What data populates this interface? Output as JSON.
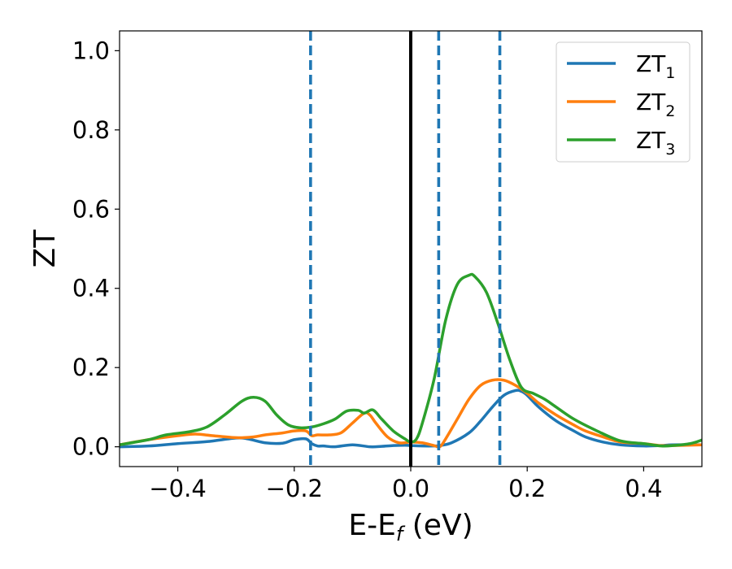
{
  "chart_data": {
    "type": "line",
    "title": "",
    "xlabel": "E-E",
    "xlabel_sub": "f",
    "xlabel_unit": " (eV)",
    "ylabel": "ZT",
    "xlim": [
      -0.5,
      0.5
    ],
    "ylim": [
      -0.05,
      1.05
    ],
    "xticks": [
      -0.4,
      -0.2,
      0.0,
      0.2,
      0.4
    ],
    "xtick_labels": [
      "−0.4",
      "−0.2",
      "0.0",
      "0.2",
      "0.4"
    ],
    "yticks": [
      0.0,
      0.2,
      0.4,
      0.6,
      0.8,
      1.0
    ],
    "ytick_labels": [
      "0.0",
      "0.2",
      "0.4",
      "0.6",
      "0.8",
      "1.0"
    ],
    "grid": false,
    "legend_position": "top-right",
    "vlines": [
      {
        "x": 0.0,
        "style": "solid",
        "color": "#000000"
      },
      {
        "x": -0.172,
        "style": "dashed",
        "color": "#1f77b4"
      },
      {
        "x": 0.048,
        "style": "dashed",
        "color": "#1f77b4"
      },
      {
        "x": 0.153,
        "style": "dashed",
        "color": "#1f77b4"
      }
    ],
    "series": [
      {
        "name": "ZT",
        "name_sub": "1",
        "color": "#1f77b4",
        "x": [
          -0.5,
          -0.45,
          -0.4,
          -0.35,
          -0.3,
          -0.28,
          -0.25,
          -0.22,
          -0.2,
          -0.18,
          -0.17,
          -0.16,
          -0.15,
          -0.13,
          -0.1,
          -0.07,
          -0.05,
          -0.03,
          -0.01,
          0.0,
          0.02,
          0.04,
          0.05,
          0.07,
          0.1,
          0.12,
          0.14,
          0.16,
          0.18,
          0.19,
          0.2,
          0.22,
          0.25,
          0.28,
          0.3,
          0.33,
          0.36,
          0.4,
          0.43,
          0.45,
          0.5
        ],
        "y": [
          0.0,
          0.002,
          0.008,
          0.013,
          0.022,
          0.02,
          0.01,
          0.009,
          0.018,
          0.02,
          0.008,
          0.002,
          0.002,
          0.0,
          0.005,
          0.0,
          0.001,
          0.003,
          0.004,
          0.003,
          0.002,
          0.002,
          0.003,
          0.01,
          0.035,
          0.065,
          0.1,
          0.13,
          0.142,
          0.14,
          0.13,
          0.1,
          0.065,
          0.04,
          0.025,
          0.012,
          0.005,
          0.002,
          0.003,
          0.005,
          0.005
        ]
      },
      {
        "name": "ZT",
        "name_sub": "2",
        "color": "#ff7f0e",
        "x": [
          -0.5,
          -0.45,
          -0.4,
          -0.37,
          -0.34,
          -0.3,
          -0.27,
          -0.25,
          -0.22,
          -0.2,
          -0.18,
          -0.17,
          -0.16,
          -0.14,
          -0.12,
          -0.1,
          -0.08,
          -0.07,
          -0.06,
          -0.04,
          -0.02,
          0.0,
          0.02,
          0.04,
          0.05,
          0.06,
          0.08,
          0.1,
          0.12,
          0.14,
          0.16,
          0.18,
          0.2,
          0.22,
          0.25,
          0.28,
          0.3,
          0.33,
          0.36,
          0.4,
          0.43,
          0.45,
          0.5
        ],
        "y": [
          0.005,
          0.018,
          0.028,
          0.032,
          0.028,
          0.023,
          0.025,
          0.03,
          0.035,
          0.04,
          0.04,
          0.028,
          0.03,
          0.03,
          0.035,
          0.06,
          0.085,
          0.08,
          0.06,
          0.025,
          0.01,
          0.012,
          0.01,
          0.003,
          0.0,
          0.02,
          0.07,
          0.12,
          0.155,
          0.168,
          0.168,
          0.155,
          0.135,
          0.11,
          0.08,
          0.055,
          0.04,
          0.025,
          0.012,
          0.008,
          0.003,
          0.003,
          0.005
        ]
      },
      {
        "name": "ZT",
        "name_sub": "3",
        "color": "#2ca02c",
        "x": [
          -0.5,
          -0.45,
          -0.42,
          -0.38,
          -0.35,
          -0.32,
          -0.29,
          -0.27,
          -0.25,
          -0.23,
          -0.21,
          -0.19,
          -0.17,
          -0.15,
          -0.13,
          -0.11,
          -0.09,
          -0.08,
          -0.065,
          -0.05,
          -0.03,
          -0.01,
          0.0,
          0.01,
          0.02,
          0.04,
          0.06,
          0.08,
          0.1,
          0.11,
          0.13,
          0.15,
          0.17,
          0.19,
          0.21,
          0.23,
          0.25,
          0.28,
          0.32,
          0.36,
          0.4,
          0.43,
          0.45,
          0.48,
          0.5
        ],
        "y": [
          0.005,
          0.018,
          0.03,
          0.038,
          0.05,
          0.08,
          0.115,
          0.125,
          0.115,
          0.08,
          0.055,
          0.048,
          0.05,
          0.058,
          0.07,
          0.09,
          0.092,
          0.085,
          0.093,
          0.07,
          0.04,
          0.02,
          0.012,
          0.02,
          0.06,
          0.17,
          0.32,
          0.41,
          0.433,
          0.43,
          0.39,
          0.31,
          0.22,
          0.15,
          0.135,
          0.12,
          0.1,
          0.07,
          0.04,
          0.015,
          0.008,
          0.002,
          0.003,
          0.008,
          0.017
        ]
      }
    ]
  }
}
